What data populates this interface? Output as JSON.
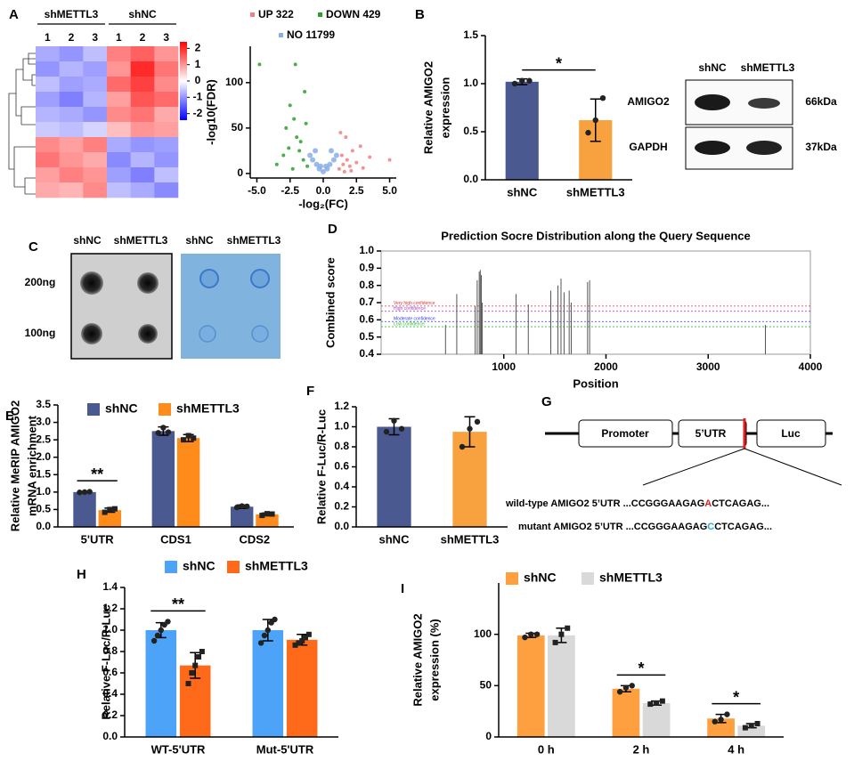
{
  "panel_labels": [
    "A",
    "B",
    "C",
    "D",
    "E",
    "F",
    "G",
    "H",
    "I"
  ],
  "blot_B": {
    "columns": [
      "shNC",
      "shMETTL3"
    ],
    "rows": [
      "AMIGO2",
      "GAPDH"
    ],
    "sizes": [
      "66kDa",
      "37kDa"
    ]
  },
  "dot_blot_C": {
    "columns": [
      "shNC",
      "shMETTL3",
      "shNC",
      "shMETTL3"
    ],
    "rows": [
      "200ng",
      "100ng"
    ]
  },
  "construct_G": {
    "promoter": "Promoter",
    "utr": "5’UTR",
    "luc": "Luc",
    "wild_type": [
      "wild-type AMIGO2 5’UTR ...CCGGGAAGAG",
      "A",
      "CTCAGAG..."
    ],
    "mutant": [
      "mutant AMIGO2 5’UTR ...CCGGGAAGAG",
      "C",
      "CTCAGAG..."
    ]
  },
  "chart_data": [
    {
      "type": "heatmap",
      "groups": [
        "shMETTL3",
        "shNC"
      ],
      "columns": [
        "1",
        "2",
        "3",
        "1",
        "2",
        "3"
      ],
      "values": [
        [
          -0.8,
          -1.0,
          -0.6,
          1.2,
          1.5,
          1.0
        ],
        [
          -1.0,
          -0.7,
          -0.9,
          1.0,
          2.0,
          1.3
        ],
        [
          -0.6,
          -0.9,
          -0.8,
          1.4,
          1.8,
          1.1
        ],
        [
          -0.9,
          -1.2,
          -0.7,
          0.9,
          1.6,
          1.4
        ],
        [
          -0.7,
          -0.8,
          -1.0,
          1.1,
          1.3,
          0.8
        ],
        [
          -0.5,
          -0.6,
          -0.4,
          0.6,
          1.0,
          0.9
        ],
        [
          1.1,
          0.9,
          1.2,
          -0.8,
          -1.0,
          -0.9
        ],
        [
          1.3,
          1.0,
          0.8,
          -1.1,
          -0.7,
          -1.0
        ],
        [
          0.9,
          1.2,
          1.0,
          -0.9,
          -1.2,
          -0.6
        ],
        [
          0.8,
          0.7,
          1.1,
          -0.6,
          -0.8,
          -1.1
        ]
      ],
      "zlim": [
        -2.4,
        2.4
      ],
      "zticks": [
        2,
        1,
        0,
        -1,
        -2
      ]
    },
    {
      "type": "scatter",
      "xlabel": "-log₂(FC)",
      "ylabel": "-log10(FDR)",
      "xlim": [
        -5.5,
        5.5
      ],
      "ylim": [
        -5,
        140
      ],
      "xticks": [
        {
          "value": -5,
          "label": "-5.0"
        },
        -2.5,
        {
          "value": 0,
          "label": "0.0"
        },
        2.5,
        {
          "value": 5,
          "label": "5.0"
        }
      ],
      "yticks": [
        0,
        50,
        100
      ],
      "series": [
        {
          "name": "UP 322",
          "color": "#f08080",
          "x": [
            1.2,
            1.5,
            1.8,
            2.0,
            2.2,
            2.5,
            2.8,
            3.0,
            1.4,
            1.7,
            2.1,
            3.5,
            1.3,
            5.0,
            1.6
          ],
          "values": [
            5,
            10,
            15,
            8,
            25,
            12,
            30,
            6,
            20,
            40,
            3,
            18,
            45,
            15,
            2
          ]
        },
        {
          "name": "DOWN 429",
          "color": "#2ca02c",
          "x": [
            -1.2,
            -1.5,
            -1.8,
            -2.0,
            -2.2,
            -2.5,
            -2.8,
            -3.0,
            -1.4,
            -1.7,
            -2.1,
            -3.5,
            -4.8,
            -2.3,
            -1.3,
            -2.6
          ],
          "values": [
            8,
            15,
            25,
            40,
            60,
            75,
            50,
            20,
            90,
            35,
            120,
            10,
            120,
            5,
            55,
            28
          ]
        },
        {
          "name": "NO 11799",
          "color": "#87aee8",
          "x": [
            -1.0,
            -0.8,
            -0.5,
            -0.3,
            0,
            0.3,
            0.5,
            0.8,
            1.0,
            -0.6,
            0.6,
            -0.2,
            0.2
          ],
          "values": [
            20,
            15,
            10,
            5,
            2,
            5,
            10,
            15,
            20,
            25,
            25,
            8,
            8
          ]
        }
      ]
    },
    {
      "type": "bar",
      "ylabel": [
        "Relative AMIGO2",
        "expression"
      ],
      "categories": [
        "shNC",
        "shMETTL3"
      ],
      "values": [
        1.02,
        0.62
      ],
      "errors": [
        0.03,
        0.22
      ],
      "points": [
        [
          1.0,
          1.03,
          1.03
        ],
        [
          0.49,
          0.62,
          0.85
        ]
      ],
      "colors": [
        "#4a5990",
        "#f7a23e"
      ],
      "ylim": [
        0,
        1.5
      ],
      "yticks": [
        {
          "value": 0,
          "label": "0.0"
        },
        0.5,
        {
          "value": 1,
          "label": "1.0"
        },
        1.5
      ],
      "significance": "*"
    },
    {
      "type": "stem",
      "title": "Prediction Socre Distribution along the Query Sequence",
      "xlabel": "Position",
      "ylabel": "Combined score",
      "xlim": [
        -200,
        4000
      ],
      "ylim": [
        0.4,
        1.0
      ],
      "xticks": [
        1000,
        2000,
        3000,
        4000
      ],
      "yticks": [
        0.4,
        0.5,
        0.6,
        0.7,
        0.8,
        0.9,
        {
          "value": 1,
          "label": "1.0"
        }
      ],
      "color": "#555555",
      "x": [
        430,
        540,
        720,
        740,
        760,
        770,
        780,
        790,
        1120,
        1240,
        1460,
        1530,
        1560,
        1590,
        1640,
        1660,
        1820,
        1840,
        3560
      ],
      "values": [
        0.57,
        0.75,
        0.68,
        0.83,
        0.88,
        0.89,
        0.86,
        0.7,
        0.75,
        0.69,
        0.77,
        0.8,
        0.84,
        0.76,
        0.77,
        0.7,
        0.82,
        0.83,
        0.57
      ],
      "thresholds": [
        {
          "label": "Very high confidence",
          "value": 0.68,
          "color": "#e03030"
        },
        {
          "label": "High confidence",
          "value": 0.65,
          "color": "#b040d0"
        },
        {
          "label": "Moderate confidence",
          "value": 0.59,
          "color": "#3040e0"
        },
        {
          "label": "Low confidence",
          "value": 0.56,
          "color": "#30c030"
        }
      ]
    },
    {
      "type": "bar",
      "ylabel": [
        "Relative MeRIP AMIGO2",
        "mRNA enrichment"
      ],
      "categories": [
        "5'UTR",
        "CDS1",
        "CDS2"
      ],
      "ylim": [
        0,
        3.5
      ],
      "yticks": [
        {
          "value": 0,
          "label": "0.0"
        },
        0.5,
        {
          "value": 1,
          "label": "1.0"
        },
        1.5,
        {
          "value": 2,
          "label": "2.0"
        },
        2.5,
        {
          "value": 3,
          "label": "3.0"
        },
        3.5
      ],
      "series": [
        {
          "name": "shNC",
          "color": "#4a5990",
          "values": [
            1.0,
            2.75,
            0.58
          ],
          "errors": [
            0.02,
            0.12,
            0.05
          ],
          "points": [
            [
              0.99,
              1.0,
              1.01
            ],
            [
              2.7,
              2.85,
              2.72
            ],
            [
              0.56,
              0.6,
              0.59
            ]
          ]
        },
        {
          "name": "shMETTL3",
          "color": "#ff8c1a",
          "values": [
            0.48,
            2.55,
            0.36
          ],
          "errors": [
            0.06,
            0.1,
            0.04
          ],
          "points": [
            [
              0.42,
              0.5,
              0.52
            ],
            [
              2.5,
              2.62,
              2.55
            ],
            [
              0.33,
              0.38,
              0.37
            ]
          ]
        }
      ],
      "significance": [
        "**",
        null,
        null
      ]
    },
    {
      "type": "bar",
      "ylabel": "Relative F-Luc/R-Luc",
      "categories": [
        "shNC",
        "shMETTL3"
      ],
      "values": [
        1.0,
        0.95
      ],
      "errors": [
        0.08,
        0.15
      ],
      "points": [
        [
          0.95,
          1.06,
          0.98
        ],
        [
          0.8,
          0.98,
          1.05
        ]
      ],
      "colors": [
        "#4a5990",
        "#f7a23e"
      ],
      "ylim": [
        0,
        1.2
      ],
      "yticks": [
        {
          "value": 0,
          "label": "0.0"
        },
        0.2,
        0.4,
        0.6,
        0.8,
        {
          "value": 1,
          "label": "1.0"
        },
        1.2
      ]
    },
    {
      "type": "bar",
      "ylabel": "Relative F-Luc/R-Luc",
      "categories": [
        "WT-5'UTR",
        "Mut-5'UTR"
      ],
      "ylim": [
        0,
        1.4
      ],
      "yticks": [
        {
          "value": 0,
          "label": "0.0"
        },
        0.2,
        0.4,
        0.6,
        0.8,
        {
          "value": 1,
          "label": "1.0"
        },
        1.2,
        1.4
      ],
      "series": [
        {
          "name": "shNC",
          "color": "#4da3f7",
          "values": [
            1.0,
            1.0
          ],
          "errors": [
            0.07,
            0.1
          ],
          "points": [
            [
              0.9,
              0.95,
              1.0,
              1.05,
              1.08
            ],
            [
              0.88,
              0.95,
              1.0,
              1.07,
              1.1
            ]
          ]
        },
        {
          "name": "shMETTL3",
          "color": "#ff6a1a",
          "values": [
            0.67,
            0.91
          ],
          "errors": [
            0.12,
            0.05
          ],
          "points": [
            [
              0.5,
              0.6,
              0.67,
              0.75,
              0.8
            ],
            [
              0.86,
              0.88,
              0.9,
              0.93,
              0.96
            ]
          ]
        }
      ],
      "significance": [
        "**",
        null
      ]
    },
    {
      "type": "bar",
      "ylabel": [
        "Relative AMIGO2",
        "expression (%)"
      ],
      "categories": [
        "0 h",
        "2 h",
        "4 h"
      ],
      "ylim": [
        0,
        150
      ],
      "yticks": [
        0,
        50,
        100
      ],
      "series": [
        {
          "name": "shNC",
          "color": "#ffa040",
          "values": [
            99,
            47,
            18
          ],
          "errors": [
            2,
            3,
            4
          ],
          "points": [
            [
              97,
              100,
              100
            ],
            [
              44,
              48,
              50
            ],
            [
              15,
              17,
              22
            ]
          ]
        },
        {
          "name": "shMETTL3",
          "color": "#d9d9d9",
          "values": [
            99,
            33,
            11
          ],
          "errors": [
            7,
            2,
            2
          ],
          "points": [
            [
              92,
              100,
              106
            ],
            [
              32,
              33,
              35
            ],
            [
              9,
              11,
              13
            ]
          ]
        }
      ],
      "significance": [
        null,
        "*",
        "*"
      ]
    }
  ]
}
